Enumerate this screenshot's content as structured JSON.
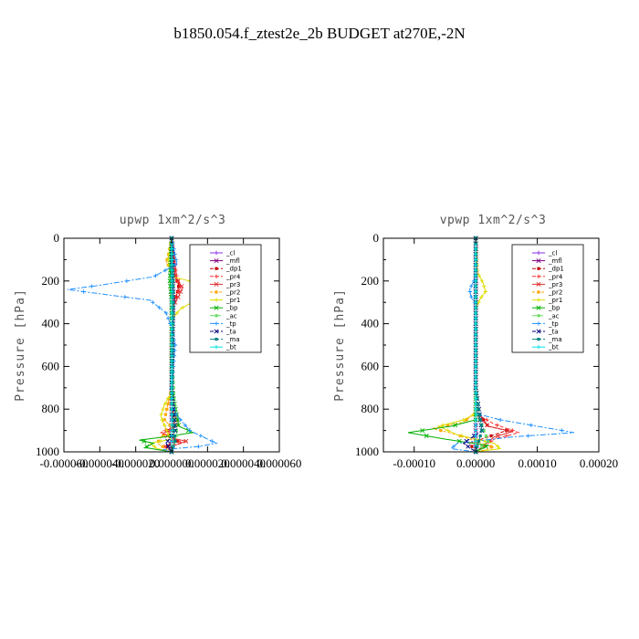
{
  "figure_title": "b1850.054.f_ztest2e_2b  BUDGET at270E,-2N",
  "legend_entries": [
    "_cl",
    "_mfl",
    "_dp1",
    "_pr4",
    "_pr3",
    "_pr2",
    "_pr1",
    "_bp",
    "_ac",
    "_tp",
    "_ta",
    "_ma",
    "_bt"
  ],
  "colors": {
    "_cl": "#8a2be2",
    "_mfl": "#800080",
    "_dp1": "#c00000",
    "_pr4": "#ff3030",
    "_pr3": "#e03030",
    "_pr2": "#ffa500",
    "_pr1": "#dddd00",
    "_bp": "#00b000",
    "_ac": "#66dd66",
    "_tp": "#1e90ff",
    "_ta": "#000080",
    "_ma": "#008080",
    "_bt": "#00e5e5"
  },
  "chart_data": [
    {
      "type": "line",
      "title": "upwp   1xm^2/s^3",
      "ylabel": "Pressure [hPa]",
      "xlim": [
        -6e-05,
        6e-05
      ],
      "ylim": [
        1000,
        0
      ],
      "xticks": [
        "-0.000060",
        "-0.000040",
        "-0.000020",
        "0.000000",
        "0.000020",
        "0.000040",
        "0.000060"
      ],
      "xtick_values": [
        -6e-05,
        -4e-05,
        -2e-05,
        0,
        2e-05,
        4e-05,
        6e-05
      ],
      "yticks": [
        0,
        200,
        400,
        600,
        800,
        1000
      ],
      "legend_position": "top-right",
      "series": [
        {
          "name": "_cl",
          "x": [
            0,
            0,
            0,
            0
          ],
          "y": [
            0,
            400,
            800,
            1000
          ]
        },
        {
          "name": "_mfl",
          "x": [
            0,
            0,
            0,
            0
          ],
          "y": [
            0,
            400,
            800,
            1000
          ]
        },
        {
          "name": "_dp1",
          "x": [
            0,
            2e-06,
            4e-06,
            3e-06,
            0,
            0,
            2e-06,
            -2e-06,
            0,
            3e-06,
            -3e-06,
            0
          ],
          "y": [
            0,
            180,
            220,
            260,
            330,
            800,
            880,
            900,
            930,
            950,
            970,
            1000
          ]
        },
        {
          "name": "_pr4",
          "x": [
            0,
            3e-06,
            5e-06,
            3e-06,
            0,
            0,
            4e-06,
            -6e-06,
            0,
            6e-06,
            -4e-06,
            0
          ],
          "y": [
            0,
            190,
            230,
            260,
            320,
            800,
            870,
            910,
            930,
            960,
            975,
            1000
          ]
        },
        {
          "name": "_pr3",
          "x": [
            0,
            2e-06,
            6e-06,
            4e-06,
            0,
            0,
            2e-06,
            -5e-06,
            0,
            8e-06,
            -2e-06,
            0
          ],
          "y": [
            0,
            180,
            230,
            270,
            330,
            800,
            880,
            915,
            935,
            950,
            980,
            1000
          ]
        },
        {
          "name": "_pr2",
          "x": [
            0,
            -2e-06,
            -3e-06,
            0,
            0,
            -4e-06,
            2e-06,
            -6e-06,
            -8e-06,
            0
          ],
          "y": [
            0,
            90,
            110,
            150,
            700,
            850,
            900,
            930,
            960,
            1000
          ]
        },
        {
          "name": "_pr1",
          "x": [
            0,
            -2e-06,
            0,
            1e-05,
            3e-05,
            1.8e-05,
            5e-06,
            0,
            0,
            -4e-06,
            -6e-06,
            -5e-06,
            -3e-06,
            -2e-06,
            0,
            -1.2e-05,
            -8e-06,
            0
          ],
          "y": [
            0,
            100,
            180,
            200,
            240,
            270,
            330,
            380,
            720,
            780,
            830,
            860,
            890,
            920,
            940,
            960,
            985,
            1000
          ]
        },
        {
          "name": "_bp",
          "x": [
            0,
            -1e-06,
            0,
            0,
            4e-06,
            1.2e-05,
            -4e-06,
            -1.8e-05,
            -1e-05,
            -1.5e-05,
            0
          ],
          "y": [
            0,
            200,
            300,
            700,
            880,
            910,
            930,
            945,
            960,
            980,
            1000
          ]
        },
        {
          "name": "_ac",
          "x": [
            0,
            1e-06,
            0,
            2e-06,
            3e-06,
            0
          ],
          "y": [
            0,
            200,
            500,
            870,
            910,
            1000
          ]
        },
        {
          "name": "_tp",
          "x": [
            0,
            2e-06,
            3e-06,
            -1e-05,
            -4e-05,
            -5.8e-05,
            -4e-05,
            -1.2e-05,
            -3e-06,
            0,
            2e-06,
            0,
            0,
            3e-06,
            1e-05,
            2.5e-05,
            1.5e-05,
            -5e-06,
            0
          ],
          "y": [
            0,
            80,
            120,
            180,
            220,
            240,
            260,
            290,
            350,
            420,
            500,
            700,
            780,
            830,
            900,
            960,
            975,
            990,
            1000
          ]
        },
        {
          "name": "_ta",
          "x": [
            0,
            1e-06,
            0,
            2e-06,
            -3e-06,
            0
          ],
          "y": [
            0,
            300,
            700,
            900,
            960,
            1000
          ]
        },
        {
          "name": "_ma",
          "x": [
            0,
            1e-06,
            0,
            2e-06,
            0
          ],
          "y": [
            0,
            300,
            800,
            950,
            1000
          ]
        },
        {
          "name": "_bt",
          "x": [
            0,
            0,
            0
          ],
          "y": [
            0,
            500,
            1000
          ]
        }
      ]
    },
    {
      "type": "line",
      "title": "vpwp   1xm^2/s^3",
      "ylabel": "Pressure [hPa]",
      "xlim": [
        -0.00015,
        0.0002
      ],
      "ylim": [
        1000,
        0
      ],
      "xticks": [
        "-0.00010",
        "0.00000",
        "0.00010",
        "0.00020"
      ],
      "xtick_values": [
        -0.0001,
        0,
        0.0001,
        0.0002
      ],
      "yticks": [
        0,
        200,
        400,
        600,
        800,
        1000
      ],
      "legend_position": "top-right",
      "series": [
        {
          "name": "_cl",
          "x": [
            0,
            0,
            0,
            0
          ],
          "y": [
            0,
            400,
            800,
            1000
          ]
        },
        {
          "name": "_mfl",
          "x": [
            0,
            0,
            0,
            0
          ],
          "y": [
            0,
            400,
            800,
            1000
          ]
        },
        {
          "name": "_dp1",
          "x": [
            0,
            0,
            2e-05,
            5e-05,
            2e-05,
            -1e-05,
            0
          ],
          "y": [
            0,
            800,
            880,
            900,
            930,
            960,
            1000
          ]
        },
        {
          "name": "_pr4",
          "x": [
            0,
            0,
            3e-05,
            7e-05,
            3e-05,
            0
          ],
          "y": [
            0,
            820,
            870,
            910,
            940,
            1000
          ]
        },
        {
          "name": "_pr3",
          "x": [
            0,
            0,
            2e-05,
            6e-05,
            3e-05,
            0
          ],
          "y": [
            0,
            820,
            880,
            905,
            930,
            1000
          ]
        },
        {
          "name": "_pr2",
          "x": [
            0,
            0,
            -2e-05,
            -7e-05,
            -3e-05,
            3e-05,
            0
          ],
          "y": [
            0,
            820,
            860,
            890,
            920,
            980,
            1000
          ]
        },
        {
          "name": "_pr1",
          "x": [
            0,
            3e-06,
            1.2e-05,
            1.6e-05,
            8e-06,
            0,
            0,
            -2e-05,
            -6e-05,
            -3e-05,
            3e-05,
            4e-05,
            0
          ],
          "y": [
            0,
            160,
            210,
            250,
            280,
            330,
            820,
            850,
            880,
            920,
            960,
            985,
            1000
          ]
        },
        {
          "name": "_bp",
          "x": [
            0,
            0,
            -4e-05,
            -0.00011,
            -5e-05,
            2e-05,
            0
          ],
          "y": [
            0,
            850,
            880,
            910,
            940,
            970,
            1000
          ]
        },
        {
          "name": "_ac",
          "x": [
            0,
            0,
            2e-05,
            0
          ],
          "y": [
            0,
            800,
            950,
            1000
          ]
        },
        {
          "name": "_tp",
          "x": [
            0,
            0,
            -3e-06,
            -1e-05,
            -8e-06,
            0,
            0,
            4e-05,
            0.0001,
            0.00016,
            6e-05,
            -3e-05,
            -4e-05,
            0
          ],
          "y": [
            0,
            160,
            200,
            240,
            270,
            310,
            820,
            850,
            880,
            910,
            930,
            960,
            985,
            1000
          ]
        },
        {
          "name": "_ta",
          "x": [
            0,
            0,
            1e-05,
            -2e-05,
            0
          ],
          "y": [
            0,
            700,
            900,
            960,
            1000
          ]
        },
        {
          "name": "_ma",
          "x": [
            0,
            0,
            1e-05,
            0
          ],
          "y": [
            0,
            700,
            900,
            1000
          ]
        },
        {
          "name": "_bt",
          "x": [
            0,
            0,
            0
          ],
          "y": [
            0,
            500,
            1000
          ]
        }
      ]
    }
  ]
}
